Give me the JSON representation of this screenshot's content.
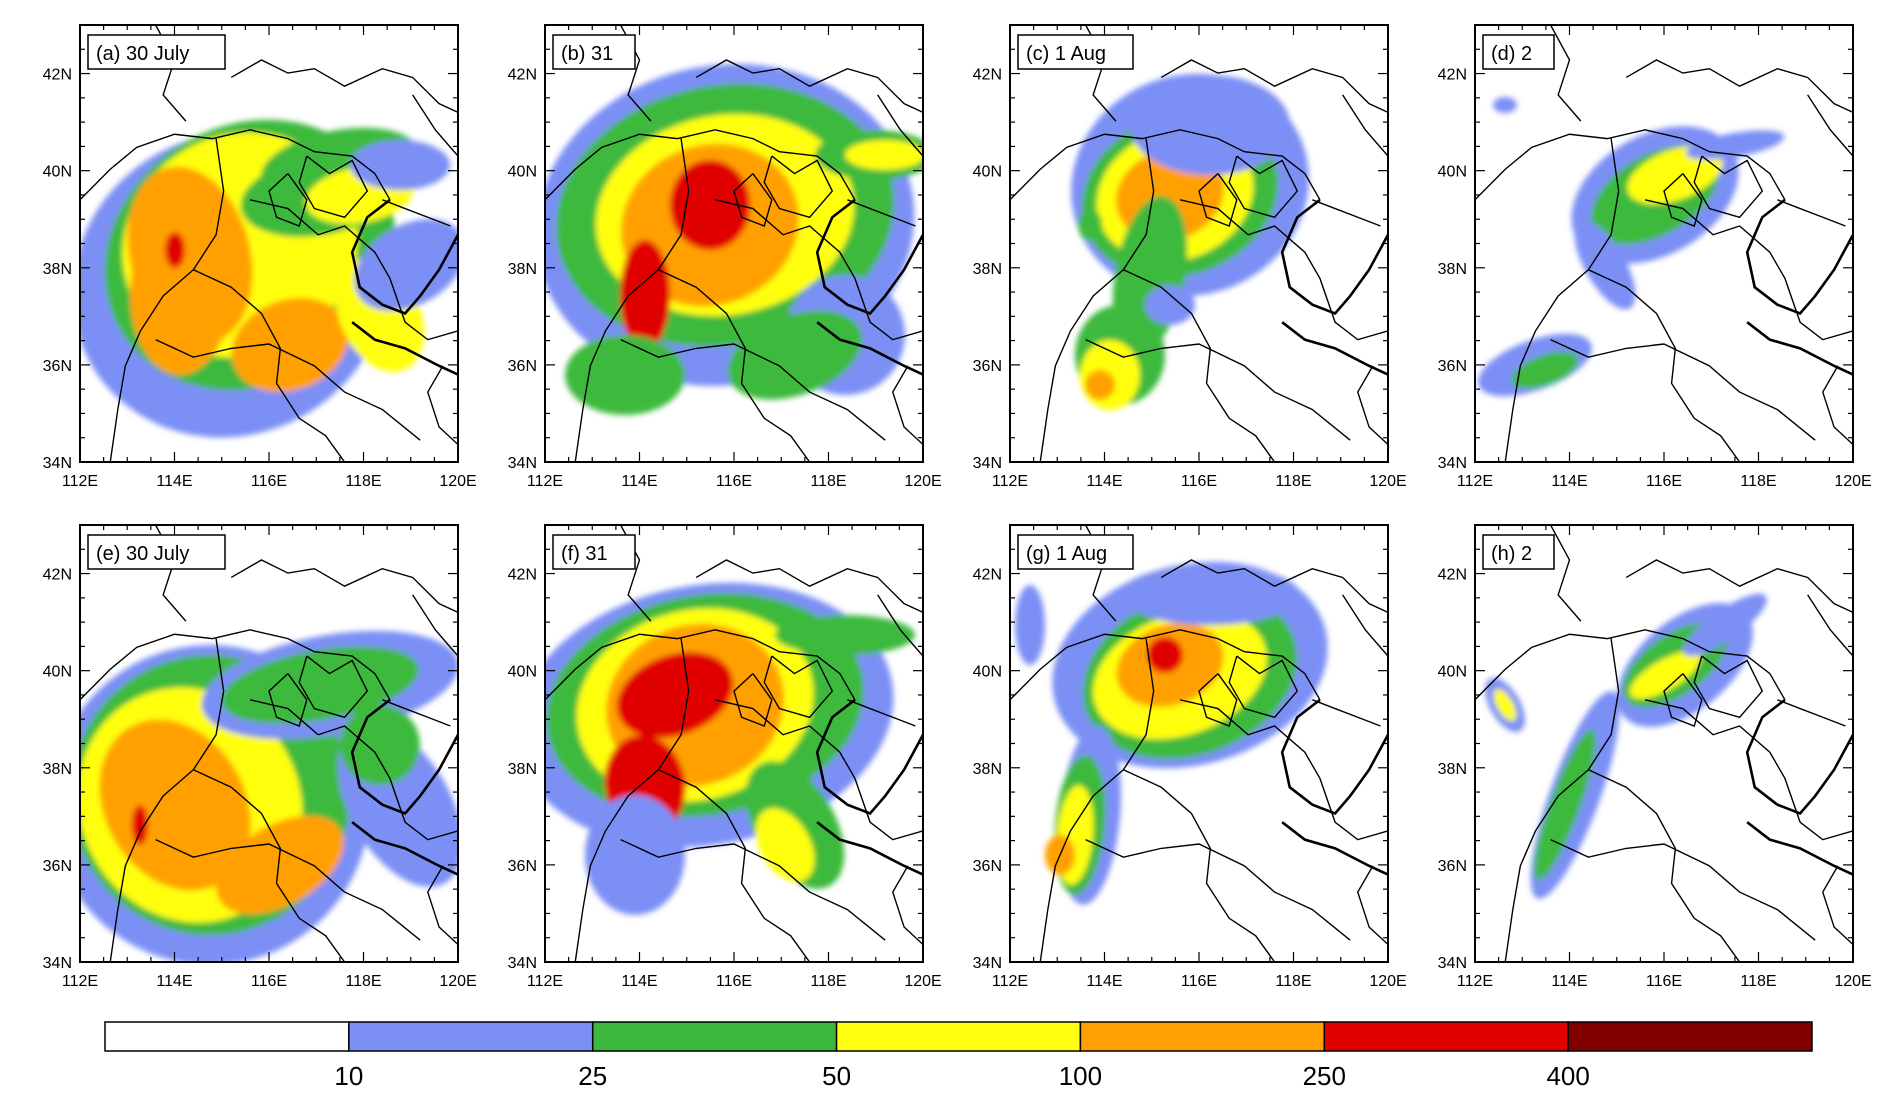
{
  "figure": {
    "panels": [
      {
        "label": "(a) 30 July"
      },
      {
        "label": "(b) 31"
      },
      {
        "label": "(c) 1 Aug"
      },
      {
        "label": "(d) 2"
      },
      {
        "label": "(e) 30 July"
      },
      {
        "label": "(f) 31"
      },
      {
        "label": "(g) 1 Aug"
      },
      {
        "label": "(h) 2"
      }
    ],
    "lon_ticks": [
      "112E",
      "114E",
      "116E",
      "118E",
      "120E"
    ],
    "lat_ticks": [
      "42N",
      "40N",
      "38N",
      "36N",
      "34N"
    ],
    "lon_range": [
      112,
      120
    ],
    "lat_range": [
      34,
      43
    ],
    "colorbar": {
      "colors": [
        "#ffffff",
        "#7b8ff5",
        "#3cb93c",
        "#ffff10",
        "#ffa000",
        "#e00000",
        "#800000"
      ],
      "labels": [
        "10",
        "25",
        "50",
        "100",
        "250",
        "400"
      ]
    }
  }
}
